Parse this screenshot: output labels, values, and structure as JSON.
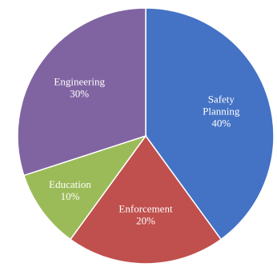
{
  "chart_data": {
    "type": "pie",
    "slices": [
      {
        "label": "Safety Planning",
        "label_lines": [
          "Safety",
          "Planning"
        ],
        "percent_label": "40%",
        "value": 40,
        "color": "#4472C4"
      },
      {
        "label": "Enforcement",
        "label_lines": [
          "Enforcement"
        ],
        "percent_label": "20%",
        "value": 20,
        "color": "#C0504D"
      },
      {
        "label": "Education",
        "label_lines": [
          "Education"
        ],
        "percent_label": "10%",
        "value": 10,
        "color": "#9BBB59"
      },
      {
        "label": "Engineering",
        "label_lines": [
          "Engineering"
        ],
        "percent_label": "30%",
        "value": 30,
        "color": "#8064A2"
      }
    ],
    "start_angle": "12 o'clock",
    "direction": "clockwise",
    "legend": "none"
  }
}
